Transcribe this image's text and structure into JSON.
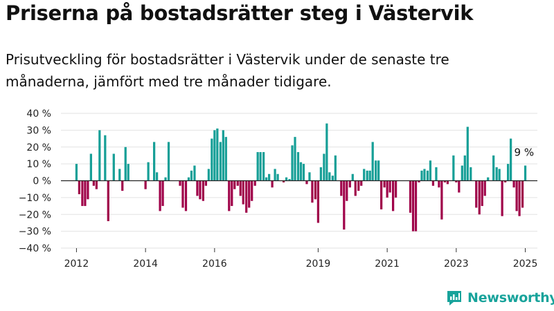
{
  "title": "Priserna på bostadsrätter steg i Västervik",
  "subtitle": "Prisutveckling för bostadsrätter i Västervik under de senaste tre månaderna, jämfört med tre månader tidigare.",
  "brand": "Newsworthy",
  "colors": {
    "positive": "#179f97",
    "negative": "#a0044a",
    "brand": "#18a39b"
  },
  "chart_data": {
    "type": "bar",
    "ylim": [
      -40,
      40
    ],
    "yticks": [
      40,
      30,
      20,
      10,
      0,
      -10,
      -20,
      -30,
      -40
    ],
    "ytick_labels": [
      "40 %",
      "30 %",
      "20 %",
      "10 %",
      "0 %",
      "−10 %",
      "−20 %",
      "−30 %",
      "−40 %"
    ],
    "x_range": [
      2011.55,
      2025.35
    ],
    "xtick_labels": [
      "2012",
      "2014",
      "2016",
      "2019",
      "2021",
      "2023",
      "2025"
    ],
    "xtick_values": [
      2012.0,
      2014.0,
      2016.0,
      2019.0,
      2021.0,
      2023.0,
      2025.0
    ],
    "grid": true,
    "end_label": "9 %",
    "x": [
      2012.0,
      2012.08,
      2012.17,
      2012.25,
      2012.33,
      2012.42,
      2012.5,
      2012.58,
      2012.67,
      2012.75,
      2012.83,
      2012.92,
      2013.0,
      2013.08,
      2013.17,
      2013.25,
      2013.33,
      2013.42,
      2013.5,
      2013.58,
      2014.0,
      2014.08,
      2014.17,
      2014.25,
      2014.33,
      2014.42,
      2014.5,
      2014.58,
      2014.67,
      2014.75,
      2014.83,
      2014.92,
      2015.0,
      2015.08,
      2015.17,
      2015.25,
      2015.33,
      2015.42,
      2015.5,
      2015.58,
      2015.67,
      2015.75,
      2015.83,
      2015.92,
      2016.0,
      2016.08,
      2016.17,
      2016.25,
      2016.33,
      2016.42,
      2016.5,
      2016.58,
      2016.67,
      2016.75,
      2016.83,
      2016.92,
      2017.0,
      2017.08,
      2017.17,
      2017.25,
      2017.33,
      2017.42,
      2017.5,
      2017.58,
      2017.67,
      2017.75,
      2017.83,
      2017.92,
      2018.0,
      2018.08,
      2018.17,
      2018.25,
      2018.33,
      2018.42,
      2018.5,
      2018.58,
      2018.67,
      2018.75,
      2018.83,
      2018.92,
      2019.0,
      2019.08,
      2019.17,
      2019.25,
      2019.33,
      2019.42,
      2019.5,
      2019.58,
      2019.67,
      2019.75,
      2019.83,
      2019.92,
      2020.0,
      2020.08,
      2020.17,
      2020.25,
      2020.33,
      2020.42,
      2020.5,
      2020.58,
      2020.67,
      2020.75,
      2020.83,
      2020.92,
      2021.0,
      2021.08,
      2021.17,
      2021.25,
      2021.33,
      2021.42,
      2021.5,
      2021.58,
      2021.67,
      2021.75,
      2021.83,
      2021.92,
      2022.0,
      2022.08,
      2022.17,
      2022.25,
      2022.33,
      2022.42,
      2022.5,
      2022.58,
      2022.67,
      2022.75,
      2022.83,
      2022.92,
      2023.0,
      2023.08,
      2023.17,
      2023.25,
      2023.33,
      2023.42,
      2023.5,
      2023.58,
      2023.67,
      2023.75,
      2023.83,
      2023.92,
      2024.0,
      2024.08,
      2024.17,
      2024.25,
      2024.33,
      2024.42,
      2024.5,
      2024.58,
      2024.67,
      2024.75,
      2024.83,
      2024.92,
      2025.0
    ],
    "values": [
      10,
      -8,
      -15,
      -15,
      -11,
      16,
      -3,
      -5,
      30,
      0,
      27,
      -24,
      0,
      16,
      0,
      7,
      -6,
      20,
      10,
      0,
      -5,
      11,
      0,
      23,
      5,
      -18,
      -15,
      2,
      23,
      0,
      0,
      0,
      -3,
      -16,
      -18,
      2,
      6,
      9,
      -9,
      -11,
      -12,
      -3,
      7,
      25,
      30,
      31,
      23,
      30,
      26,
      -18,
      -15,
      -5,
      -3,
      -9,
      -14,
      -19,
      -16,
      -12,
      -3,
      17,
      17,
      17,
      2,
      4,
      -4,
      7,
      4,
      0,
      -1,
      2,
      1,
      21,
      26,
      17,
      11,
      10,
      -2,
      5,
      -13,
      -11,
      -25,
      8,
      16,
      34,
      5,
      3,
      15,
      0,
      -9,
      -29,
      -12,
      -4,
      4,
      -9,
      -6,
      -3,
      7,
      6,
      6,
      23,
      12,
      12,
      -17,
      -4,
      -10,
      -7,
      -18,
      -10,
      0,
      0,
      0,
      0,
      -19,
      -30,
      -30,
      -1,
      6,
      7,
      6,
      12,
      -3,
      8,
      -4,
      -23,
      -1,
      -2,
      0,
      15,
      -1,
      -7,
      9,
      15,
      32,
      8,
      0,
      -16,
      -20,
      -15,
      -9,
      2,
      0,
      15,
      8,
      7,
      -21,
      -1,
      10,
      25,
      -4,
      -18,
      -21,
      -16,
      9
    ]
  }
}
